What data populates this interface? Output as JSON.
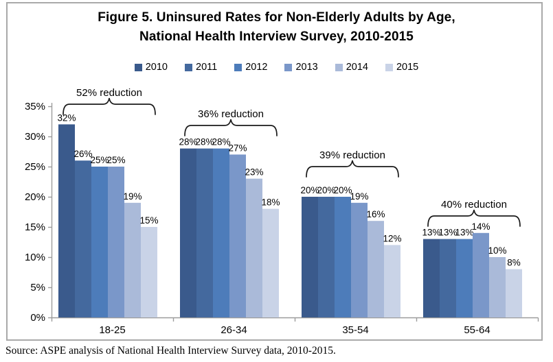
{
  "figure": {
    "title_line1": "Figure 5. Uninsured Rates for Non-Elderly Adults by Age,",
    "title_line2": "National Health Interview Survey, 2010-2015",
    "source": "Source: ASPE analysis of National Health Interview Survey data, 2010-2015."
  },
  "chart_data": {
    "type": "bar",
    "title": "Figure 5. Uninsured Rates for Non-Elderly Adults by Age, National Health Interview Survey, 2010-2015",
    "categories": [
      "18-25",
      "26-34",
      "35-54",
      "55-64"
    ],
    "series": [
      {
        "name": "2010",
        "color": "#3a5a8c",
        "values": [
          32,
          28,
          20,
          13
        ]
      },
      {
        "name": "2011",
        "color": "#44699e",
        "values": [
          26,
          28,
          20,
          13
        ]
      },
      {
        "name": "2012",
        "color": "#4d7cba",
        "values": [
          25,
          28,
          20,
          13
        ]
      },
      {
        "name": "2013",
        "color": "#7a97c9",
        "values": [
          25,
          27,
          19,
          14
        ]
      },
      {
        "name": "2014",
        "color": "#aabad9",
        "values": [
          19,
          23,
          16,
          10
        ]
      },
      {
        "name": "2015",
        "color": "#c9d3e7",
        "values": [
          15,
          18,
          12,
          8
        ]
      }
    ],
    "annotations": [
      "52% reduction",
      "36% reduction",
      "39% reduction",
      "40% reduction"
    ],
    "data_label_format": "{v}%",
    "y_axis": {
      "min": 0,
      "max": 35,
      "step": 5,
      "tick_format": "{v}%"
    },
    "x_axis_ticks": [
      "0%",
      "5%",
      "10%",
      "15%",
      "20%",
      "25%",
      "30%",
      "35%"
    ],
    "legend_position": "top",
    "grid": false,
    "source": "Source: ASPE analysis of National Health Interview Survey data, 2010-2015."
  }
}
